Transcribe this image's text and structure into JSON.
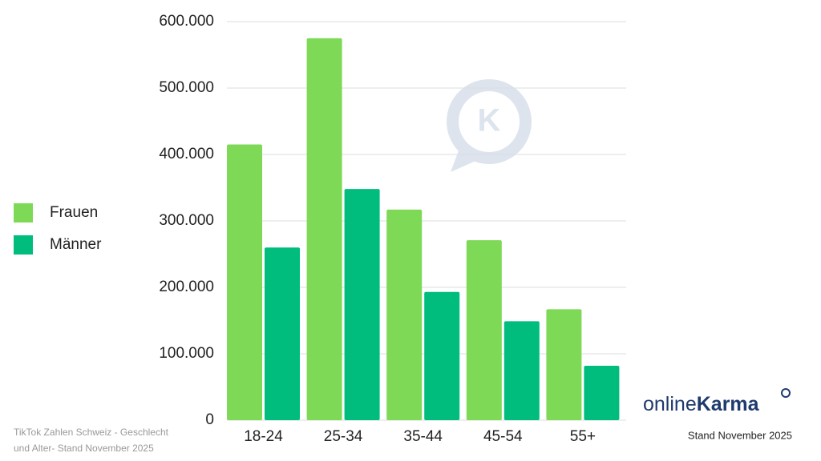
{
  "chart_data": {
    "type": "bar",
    "categories": [
      "18-24",
      "25-34",
      "35-44",
      "45-54",
      "55+"
    ],
    "series": [
      {
        "name": "Frauen",
        "color": "#7ed957",
        "values": [
          415000,
          575000,
          317000,
          271000,
          167000
        ]
      },
      {
        "name": "Männer",
        "color": "#00bd7e",
        "values": [
          260000,
          348000,
          193000,
          149000,
          82000
        ]
      }
    ],
    "ylim": [
      0,
      600000
    ],
    "yticks": [
      0,
      {
        "value": 100000,
        "label": "100.000"
      },
      {
        "value": 200000,
        "label": "200.000"
      },
      {
        "value": 300000,
        "label": "300.000"
      },
      {
        "value": 400000,
        "label": "400.000"
      },
      {
        "value": 500000,
        "label": "500.000"
      },
      {
        "value": 600000,
        "label": "600.000"
      }
    ],
    "grid": true,
    "legend": "left"
  },
  "footnote": [
    "TikTok Zahlen Schweiz - Geschlecht",
    "und Alter- Stand November 2025"
  ],
  "stand": "Stand November 2025",
  "logo": {
    "prefix": "online",
    "brand": "Karma"
  }
}
